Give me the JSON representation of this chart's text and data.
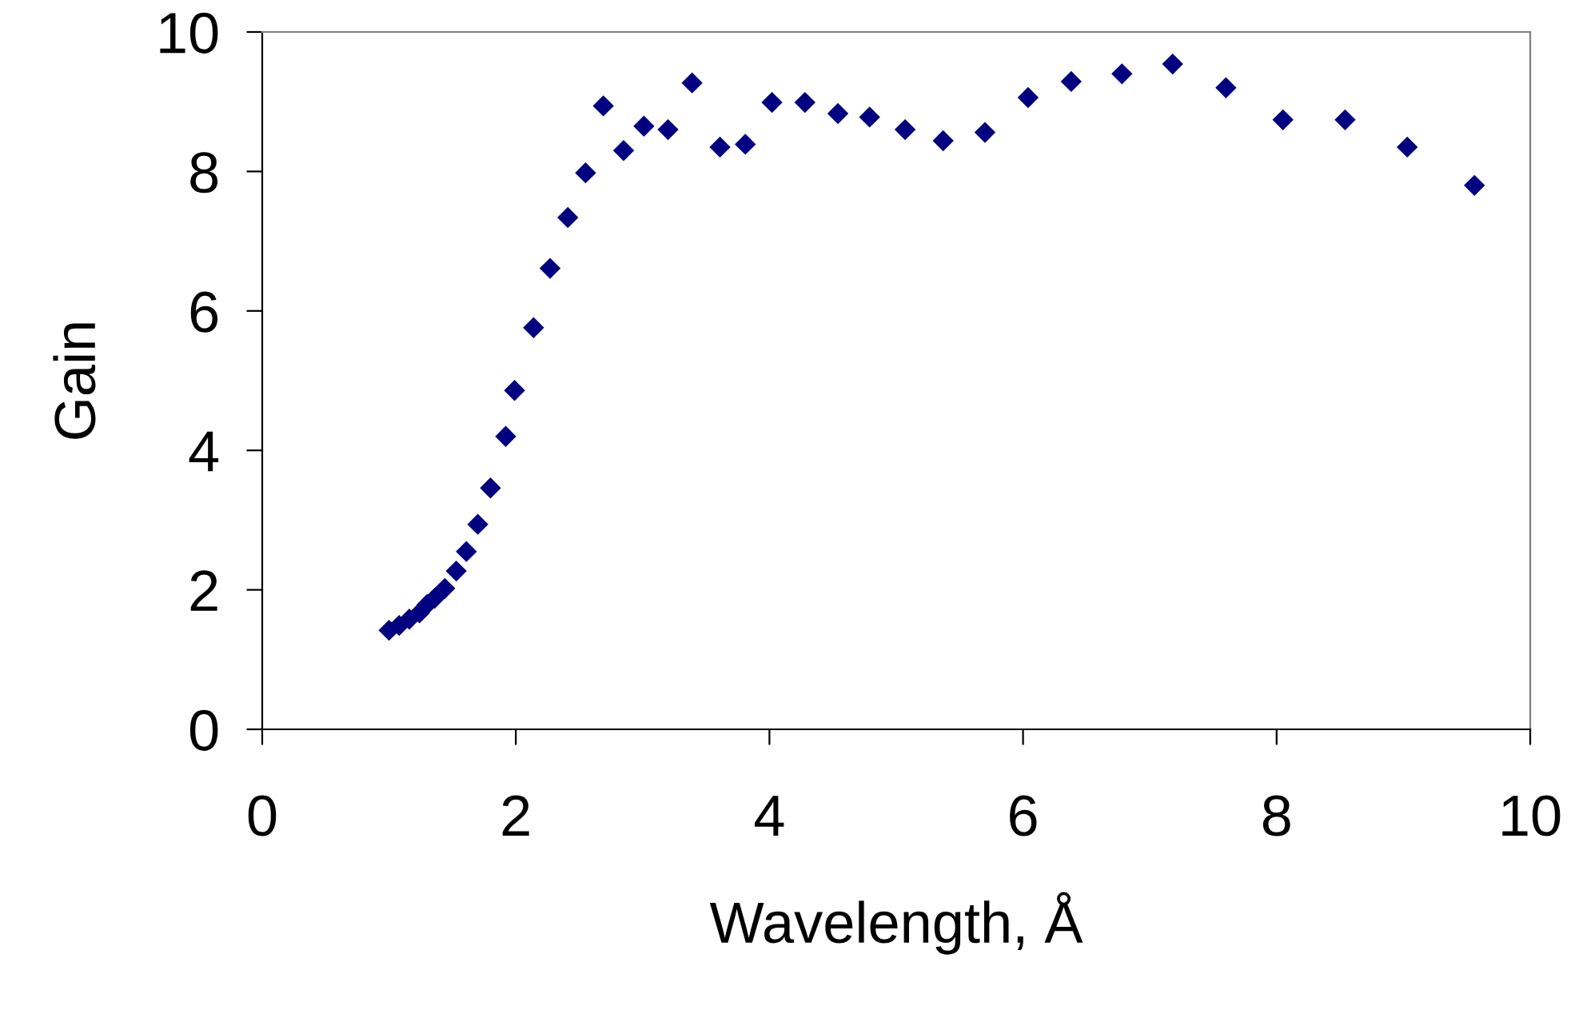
{
  "chart_data": {
    "type": "scatter",
    "xlabel": "Wavelength, Å",
    "ylabel": "Gain",
    "xlim": [
      0,
      10
    ],
    "xticks": [
      0,
      2,
      4,
      6,
      8,
      10
    ],
    "ylim": [
      0,
      10
    ],
    "yticks": [
      0,
      2,
      4,
      6,
      8,
      10
    ],
    "grid": false,
    "marker": "diamond",
    "series": [
      {
        "color": "#000080",
        "x": [
          1.0,
          1.08,
          1.16,
          1.24,
          1.3,
          1.36,
          1.44,
          1.53,
          1.61,
          1.7,
          1.8,
          1.92,
          1.99,
          2.14,
          2.27,
          2.41,
          2.55,
          2.69,
          2.85,
          3.01,
          3.2,
          3.39,
          3.61,
          3.81,
          4.02,
          4.28,
          4.54,
          4.79,
          5.07,
          5.37,
          5.7,
          6.04,
          6.38,
          6.78,
          7.18,
          7.6,
          8.05,
          8.54,
          9.03,
          9.56
        ],
        "values": [
          1.42,
          1.49,
          1.58,
          1.67,
          1.79,
          1.88,
          2.02,
          2.27,
          2.55,
          2.94,
          3.46,
          4.2,
          4.86,
          5.76,
          6.61,
          7.34,
          7.98,
          8.94,
          8.3,
          8.65,
          8.6,
          9.27,
          8.35,
          8.39,
          8.99,
          8.99,
          8.83,
          8.78,
          8.6,
          8.44,
          8.56,
          9.06,
          9.29,
          9.4,
          9.54,
          9.2,
          8.74,
          8.74,
          8.35,
          7.8
        ]
      }
    ]
  }
}
